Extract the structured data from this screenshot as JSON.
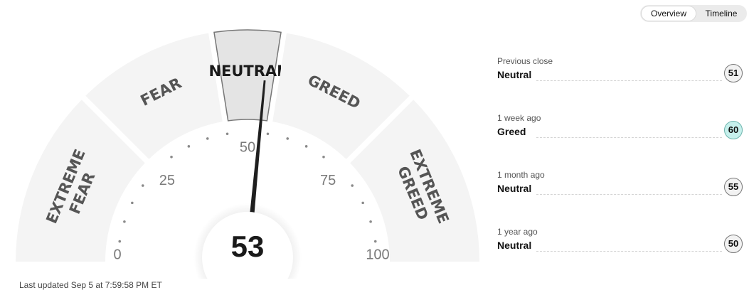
{
  "toggle": {
    "overview_label": "Overview",
    "timeline_label": "Timeline",
    "selected": "Overview"
  },
  "gauge": {
    "value": 53,
    "min": 0,
    "max": 100,
    "scale_labels": [
      "0",
      "25",
      "50",
      "75",
      "100"
    ],
    "zones": [
      {
        "label_lines": [
          "EXTREME",
          "FEAR"
        ],
        "from": 0,
        "to": 25
      },
      {
        "label_lines": [
          "FEAR"
        ],
        "from": 25,
        "to": 45
      },
      {
        "label_lines": [
          "NEUTRAL"
        ],
        "from": 45,
        "to": 55
      },
      {
        "label_lines": [
          "GREED"
        ],
        "from": 55,
        "to": 75
      },
      {
        "label_lines": [
          "EXTREME",
          "GREED"
        ],
        "from": 75,
        "to": 100
      }
    ],
    "active_zone": "NEUTRAL",
    "colors": {
      "zone": "#f4f4f4",
      "zone_active": "#e4e4e4",
      "zone_text": "#555555",
      "needle": "#1f1f1f",
      "tick": "#8a8a8a"
    }
  },
  "footer": {
    "last_updated": "Last updated Sep 5 at 7:59:58 PM ET"
  },
  "history": [
    {
      "when": "Previous close",
      "label": "Neutral",
      "value": "51",
      "tone": "neutral"
    },
    {
      "when": "1 week ago",
      "label": "Greed",
      "value": "60",
      "tone": "greed"
    },
    {
      "when": "1 month ago",
      "label": "Neutral",
      "value": "55",
      "tone": "neutral"
    },
    {
      "when": "1 year ago",
      "label": "Neutral",
      "value": "50",
      "tone": "neutral"
    }
  ]
}
